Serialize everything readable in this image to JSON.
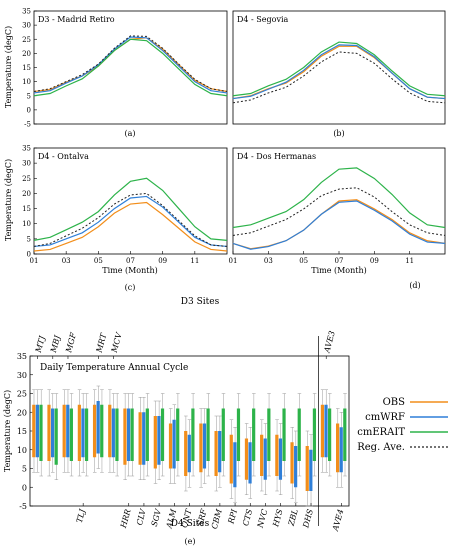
{
  "figure": {
    "panel_letters": [
      "(a)",
      "(b)",
      "(c)",
      "(d)",
      "(e)"
    ]
  },
  "legend": {
    "entries": [
      {
        "label": "OBS",
        "color": "#f28e1b",
        "style": "solid"
      },
      {
        "label": "cmWRF",
        "color": "#2f7fd8",
        "style": "solid"
      },
      {
        "label": "cmERAIT",
        "color": "#2db34a",
        "style": "solid"
      },
      {
        "label": "Reg. Ave.",
        "color": "#222222",
        "style": "dotted"
      }
    ]
  },
  "chart_data": [
    {
      "type": "line",
      "panel": "a",
      "title": "D3 - Madrid Retiro",
      "ylabel": "Temperature (degC)",
      "xlabel": "",
      "x": [
        1,
        2,
        3,
        4,
        5,
        6,
        7,
        8,
        9,
        10,
        11,
        12,
        13
      ],
      "x_tick_labels": [],
      "ylim": [
        -5,
        35
      ],
      "yticks": [
        -5,
        0,
        5,
        10,
        15,
        20,
        25,
        30,
        35
      ],
      "series": [
        {
          "name": "OBS",
          "values": [
            6.5,
            7.2,
            9.8,
            12.0,
            15.5,
            21.0,
            25.0,
            25.5,
            21.5,
            16.0,
            10.5,
            7.5,
            6.5
          ]
        },
        {
          "name": "cmWRF",
          "values": [
            6.0,
            6.8,
            9.5,
            12.0,
            16.0,
            21.5,
            25.8,
            25.5,
            21.0,
            15.5,
            10.0,
            6.8,
            6.0
          ]
        },
        {
          "name": "cmERAIT",
          "values": [
            5.0,
            5.8,
            8.5,
            11.0,
            15.5,
            21.0,
            25.0,
            24.5,
            20.0,
            14.5,
            9.0,
            5.8,
            5.0
          ]
        },
        {
          "name": "Reg. Ave.",
          "values": [
            6.5,
            7.5,
            10.0,
            12.5,
            16.2,
            21.8,
            26.2,
            26.0,
            21.8,
            16.2,
            10.8,
            7.5,
            6.5
          ]
        }
      ]
    },
    {
      "type": "line",
      "panel": "b",
      "title": "D4 - Segovia",
      "ylabel": "",
      "xlabel": "",
      "x": [
        1,
        2,
        3,
        4,
        5,
        6,
        7,
        8,
        9,
        10,
        11,
        12,
        13
      ],
      "x_tick_labels": [],
      "ylim": [
        -5,
        35
      ],
      "yticks": [],
      "series": [
        {
          "name": "OBS",
          "values": [
            4.0,
            5.0,
            7.5,
            9.5,
            13.5,
            19.0,
            22.5,
            22.5,
            18.5,
            13.0,
            7.5,
            4.5,
            4.0
          ]
        },
        {
          "name": "cmWRF",
          "values": [
            4.0,
            4.8,
            7.3,
            9.8,
            14.0,
            19.5,
            23.0,
            22.8,
            18.8,
            13.0,
            7.5,
            4.5,
            4.0
          ]
        },
        {
          "name": "cmERAIT",
          "values": [
            5.0,
            5.8,
            8.5,
            10.8,
            15.0,
            20.5,
            24.0,
            23.5,
            19.5,
            13.8,
            8.5,
            5.5,
            5.0
          ]
        },
        {
          "name": "Reg. Ave.",
          "values": [
            2.5,
            3.5,
            6.0,
            8.0,
            12.0,
            17.0,
            20.5,
            20.0,
            16.5,
            11.0,
            6.0,
            3.0,
            2.5
          ]
        }
      ]
    },
    {
      "type": "line",
      "panel": "c",
      "title": "D4 - Ontalva",
      "ylabel": "Temperature (degC)",
      "xlabel": "Time (Month)",
      "x": [
        1,
        2,
        3,
        4,
        5,
        6,
        7,
        8,
        9,
        10,
        11,
        12,
        13
      ],
      "x_tick_labels": [
        "01",
        "03",
        "05",
        "07",
        "09",
        "11"
      ],
      "ylim": [
        0,
        35
      ],
      "yticks": [
        0,
        5,
        10,
        15,
        20,
        25,
        30,
        35
      ],
      "series": [
        {
          "name": "OBS",
          "values": [
            1.0,
            1.5,
            3.5,
            5.5,
            9.0,
            13.5,
            16.5,
            17.0,
            13.0,
            8.5,
            4.0,
            1.5,
            1.0
          ]
        },
        {
          "name": "cmWRF",
          "values": [
            2.5,
            3.0,
            5.0,
            7.0,
            10.5,
            15.0,
            18.5,
            19.0,
            15.5,
            10.5,
            5.5,
            3.0,
            2.5
          ]
        },
        {
          "name": "cmERAIT",
          "values": [
            4.5,
            5.5,
            8.0,
            10.5,
            14.0,
            19.5,
            24.0,
            25.0,
            21.0,
            15.0,
            9.0,
            5.0,
            4.5
          ]
        },
        {
          "name": "Reg. Ave.",
          "values": [
            2.5,
            3.5,
            6.0,
            8.5,
            12.0,
            16.5,
            19.5,
            20.0,
            16.0,
            11.0,
            6.0,
            3.0,
            2.5
          ]
        }
      ]
    },
    {
      "type": "line",
      "panel": "d",
      "title": "D4 - Dos Hermanas",
      "ylabel": "",
      "xlabel": "Time (Month)",
      "x": [
        1,
        2,
        3,
        4,
        5,
        6,
        7,
        8,
        9,
        10,
        11,
        12,
        13
      ],
      "x_tick_labels": [
        "01",
        "03",
        "05",
        "07",
        "09",
        "11"
      ],
      "ylim": [
        -5,
        35
      ],
      "yticks": [],
      "series": [
        {
          "name": "OBS",
          "values": [
            -1.0,
            -3.0,
            -2.0,
            0.0,
            4.0,
            10.0,
            15.0,
            15.5,
            12.0,
            8.0,
            3.0,
            0.0,
            -1.0
          ]
        },
        {
          "name": "cmWRF",
          "values": [
            -1.0,
            -3.2,
            -2.2,
            0.0,
            4.0,
            10.0,
            14.5,
            15.0,
            11.5,
            7.5,
            2.5,
            -0.5,
            -1.0
          ]
        },
        {
          "name": "cmERAIT",
          "values": [
            5.0,
            6.0,
            8.5,
            11.0,
            15.5,
            22.0,
            27.0,
            27.5,
            23.5,
            17.5,
            10.5,
            6.0,
            5.0
          ]
        },
        {
          "name": "Reg. Ave.",
          "values": [
            2.0,
            3.0,
            5.5,
            8.0,
            12.0,
            17.0,
            19.5,
            20.0,
            16.5,
            11.0,
            6.0,
            3.0,
            2.0
          ]
        }
      ]
    },
    {
      "type": "bar",
      "panel": "e",
      "title": "Daily Temperature Annual Cycle",
      "top_axis_label": "D3 Sites",
      "xlabel": "D4 Sites",
      "ylabel": "Temperature (degC)",
      "ylim": [
        -5,
        35
      ],
      "yticks": [
        -5,
        0,
        5,
        10,
        15,
        20,
        25,
        30,
        35
      ],
      "top_tick_labels": [
        "MTJ",
        "MBJ",
        "MGF",
        "MRT",
        "MCV",
        "AVE3"
      ],
      "bottom_tick_labels": [
        "TLJ",
        "HRR",
        "CLV",
        "SGV",
        "ALM",
        "ONT",
        "SRF",
        "CBM",
        "RPI",
        "CTS",
        "NVC",
        "HYS",
        "ZBL",
        "DHS",
        "AVE4"
      ],
      "groups": [
        {
          "label": "MTJ",
          "axis": "top",
          "ranges": [
            [
              8,
              22
            ],
            [
              8,
              22
            ],
            [
              7,
              22
            ]
          ]
        },
        {
          "label": "MBJ",
          "axis": "top",
          "ranges": [
            [
              7,
              22
            ],
            [
              8,
              21
            ],
            [
              6,
              21
            ]
          ]
        },
        {
          "label": "MGF",
          "axis": "top",
          "ranges": [
            [
              8,
              22
            ],
            [
              8,
              22
            ],
            [
              7,
              21
            ]
          ]
        },
        {
          "label": "TLJ",
          "axis": "bottom",
          "ranges": [
            [
              7,
              22
            ],
            [
              8,
              21
            ],
            [
              7,
              21
            ]
          ]
        },
        {
          "label": "MRT",
          "axis": "top",
          "ranges": [
            [
              8,
              22
            ],
            [
              9,
              23
            ],
            [
              8,
              22
            ]
          ]
        },
        {
          "label": "MCV",
          "axis": "top",
          "ranges": [
            [
              8,
              22
            ],
            [
              8,
              21
            ],
            [
              7,
              21
            ]
          ]
        },
        {
          "label": "HRR",
          "axis": "bottom",
          "ranges": [
            [
              6,
              21
            ],
            [
              7,
              21
            ],
            [
              7,
              21
            ]
          ]
        },
        {
          "label": "CLV",
          "axis": "bottom",
          "ranges": [
            [
              6,
              20
            ],
            [
              6,
              20
            ],
            [
              7,
              21
            ]
          ]
        },
        {
          "label": "SGV",
          "axis": "bottom",
          "ranges": [
            [
              5,
              19
            ],
            [
              6,
              19
            ],
            [
              7,
              21
            ]
          ]
        },
        {
          "label": "ALM",
          "axis": "bottom",
          "ranges": [
            [
              5,
              17
            ],
            [
              5,
              18
            ],
            [
              7,
              21
            ]
          ]
        },
        {
          "label": "ONT",
          "axis": "bottom",
          "ranges": [
            [
              3,
              15
            ],
            [
              4,
              14
            ],
            [
              7,
              21
            ]
          ]
        },
        {
          "label": "SRF",
          "axis": "bottom",
          "ranges": [
            [
              4,
              17
            ],
            [
              5,
              17
            ],
            [
              7,
              21
            ]
          ]
        },
        {
          "label": "CBM",
          "axis": "bottom",
          "ranges": [
            [
              3,
              15
            ],
            [
              4,
              15
            ],
            [
              7,
              21
            ]
          ]
        },
        {
          "label": "RPI",
          "axis": "bottom",
          "ranges": [
            [
              1,
              14
            ],
            [
              0,
              12
            ],
            [
              7,
              21
            ]
          ]
        },
        {
          "label": "CTS",
          "axis": "bottom",
          "ranges": [
            [
              2,
              13
            ],
            [
              1,
              12
            ],
            [
              7,
              21
            ]
          ]
        },
        {
          "label": "NVC",
          "axis": "bottom",
          "ranges": [
            [
              3,
              14
            ],
            [
              2,
              13
            ],
            [
              7,
              21
            ]
          ]
        },
        {
          "label": "HYS",
          "axis": "bottom",
          "ranges": [
            [
              3,
              14
            ],
            [
              2,
              13
            ],
            [
              7,
              21
            ]
          ]
        },
        {
          "label": "ZBL",
          "axis": "bottom",
          "ranges": [
            [
              1,
              12
            ],
            [
              0,
              11
            ],
            [
              7,
              21
            ]
          ]
        },
        {
          "label": "DHS",
          "axis": "bottom",
          "ranges": [
            [
              -1,
              11
            ],
            [
              -1,
              10
            ],
            [
              7,
              21
            ]
          ]
        },
        {
          "label": "AVE3",
          "axis": "top",
          "ranges": [
            [
              8,
              22
            ],
            [
              8,
              22
            ],
            [
              7,
              21
            ]
          ]
        },
        {
          "label": "AVE4",
          "axis": "bottom",
          "ranges": [
            [
              4,
              17
            ],
            [
              4,
              16
            ],
            [
              7,
              21
            ]
          ]
        }
      ],
      "separator_after_group": 18
    }
  ]
}
